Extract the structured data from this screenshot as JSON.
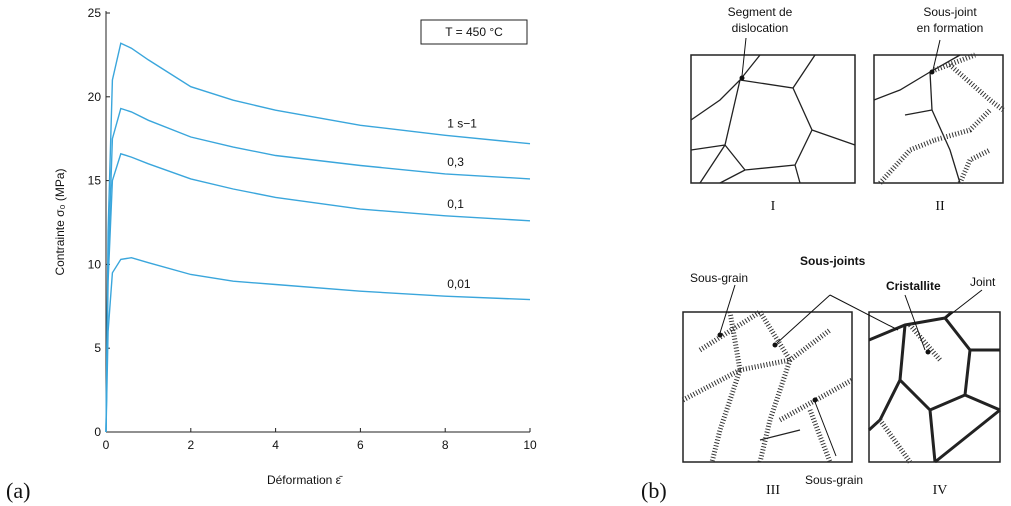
{
  "chart_data": {
    "type": "line",
    "xlabel": "Déformation ε̄",
    "ylabel": "Contrainte σ₀ (MPa)",
    "annotation": "T = 450 °C",
    "x": [
      0,
      0.05,
      0.15,
      0.35,
      0.6,
      1,
      2,
      3,
      4,
      6,
      8,
      10
    ],
    "series": [
      {
        "name": "1 s−1",
        "color": "#3aa6dc",
        "values": [
          0,
          12,
          21,
          23.2,
          22.9,
          22.2,
          20.6,
          19.8,
          19.2,
          18.3,
          17.7,
          17.2
        ]
      },
      {
        "name": "0,3",
        "color": "#3aa6dc",
        "values": [
          0,
          10,
          17.5,
          19.3,
          19.1,
          18.6,
          17.6,
          17.0,
          16.5,
          15.9,
          15.4,
          15.1
        ]
      },
      {
        "name": "0,1",
        "color": "#3aa6dc",
        "values": [
          0,
          9,
          15,
          16.6,
          16.4,
          16.0,
          15.1,
          14.5,
          14.0,
          13.3,
          12.9,
          12.6
        ]
      },
      {
        "name": "0,01",
        "color": "#3aa6dc",
        "values": [
          0,
          6,
          9.5,
          10.3,
          10.4,
          10.1,
          9.4,
          9.0,
          8.8,
          8.4,
          8.1,
          7.9
        ]
      }
    ],
    "xlim": [
      0,
      10
    ],
    "xticks": [
      0,
      2,
      4,
      6,
      8,
      10
    ],
    "ylim": [
      0,
      25
    ],
    "yticks": [
      0,
      5,
      10,
      15,
      20,
      25
    ]
  },
  "panel_labels": [
    "(a)",
    "(b)"
  ],
  "diagram": {
    "numerals": [
      "I",
      "II",
      "III",
      "IV"
    ],
    "labels": [
      [
        "Segment de",
        "dislocation"
      ],
      [
        "Sous-joint",
        "en formation"
      ],
      [
        "Sous-grain"
      ],
      [
        "Sous-joints"
      ],
      [
        "Cristallite"
      ],
      [
        "Joint"
      ],
      [
        "Sous-grain"
      ]
    ]
  }
}
